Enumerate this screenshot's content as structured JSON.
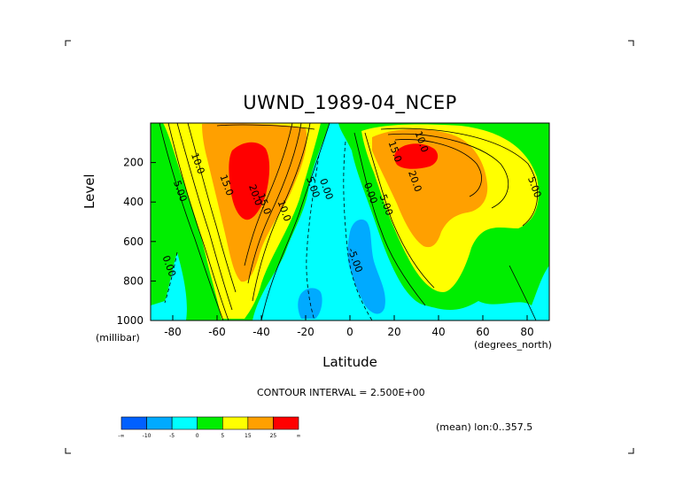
{
  "title": "UWND_1989-04_NCEP",
  "chart_data": {
    "type": "heatmap",
    "title": "UWND_1989-04_NCEP",
    "xlabel": "Latitude",
    "ylabel": "Level",
    "x_unit": "(degrees_north)",
    "y_unit": "(millibar)",
    "xlim": [
      -90,
      90
    ],
    "ylim": [
      1000,
      0
    ],
    "x_ticks": [
      -80,
      -60,
      -40,
      -20,
      0,
      20,
      40,
      60,
      80
    ],
    "y_ticks": [
      200,
      400,
      600,
      800,
      1000
    ],
    "contour_labels": [
      {
        "text": "5.00",
        "x": -78,
        "y": 350
      },
      {
        "text": "10.0",
        "x": -70,
        "y": 210
      },
      {
        "text": "15.0",
        "x": -57,
        "y": 320
      },
      {
        "text": "20.0",
        "x": -44,
        "y": 370
      },
      {
        "text": "15.0",
        "x": -40,
        "y": 415
      },
      {
        "text": "10.0",
        "x": -31,
        "y": 450
      },
      {
        "text": "5.00",
        "x": -18,
        "y": 330
      },
      {
        "text": "0.00",
        "x": -12,
        "y": 340
      },
      {
        "text": "0.00",
        "x": -83,
        "y": 730
      },
      {
        "text": "0.00",
        "x": 8,
        "y": 360
      },
      {
        "text": "5.00",
        "x": 15,
        "y": 420
      },
      {
        "text": "-5.00",
        "x": 1,
        "y": 700
      },
      {
        "text": "15.0",
        "x": 19,
        "y": 150
      },
      {
        "text": "10.0",
        "x": 31,
        "y": 100
      },
      {
        "text": "20.0",
        "x": 28,
        "y": 300
      },
      {
        "text": "5.00",
        "x": 82,
        "y": 330
      }
    ],
    "contour_interval": "CONTOUR INTERVAL = 2.500E+00",
    "grid": false,
    "colorbar": {
      "levels": [
        "-∞",
        "-10",
        "-5",
        "0",
        "5",
        "15",
        "25",
        "∞"
      ],
      "colors": [
        "#0060ff",
        "#00aaff",
        "#00ffff",
        "#00ee00",
        "#ffff00",
        "#ffa000",
        "#ff0000"
      ]
    }
  },
  "notes": {
    "contour_interval": "CONTOUR INTERVAL = 2.500E+00",
    "mean": "(mean) lon:0..357.5"
  }
}
